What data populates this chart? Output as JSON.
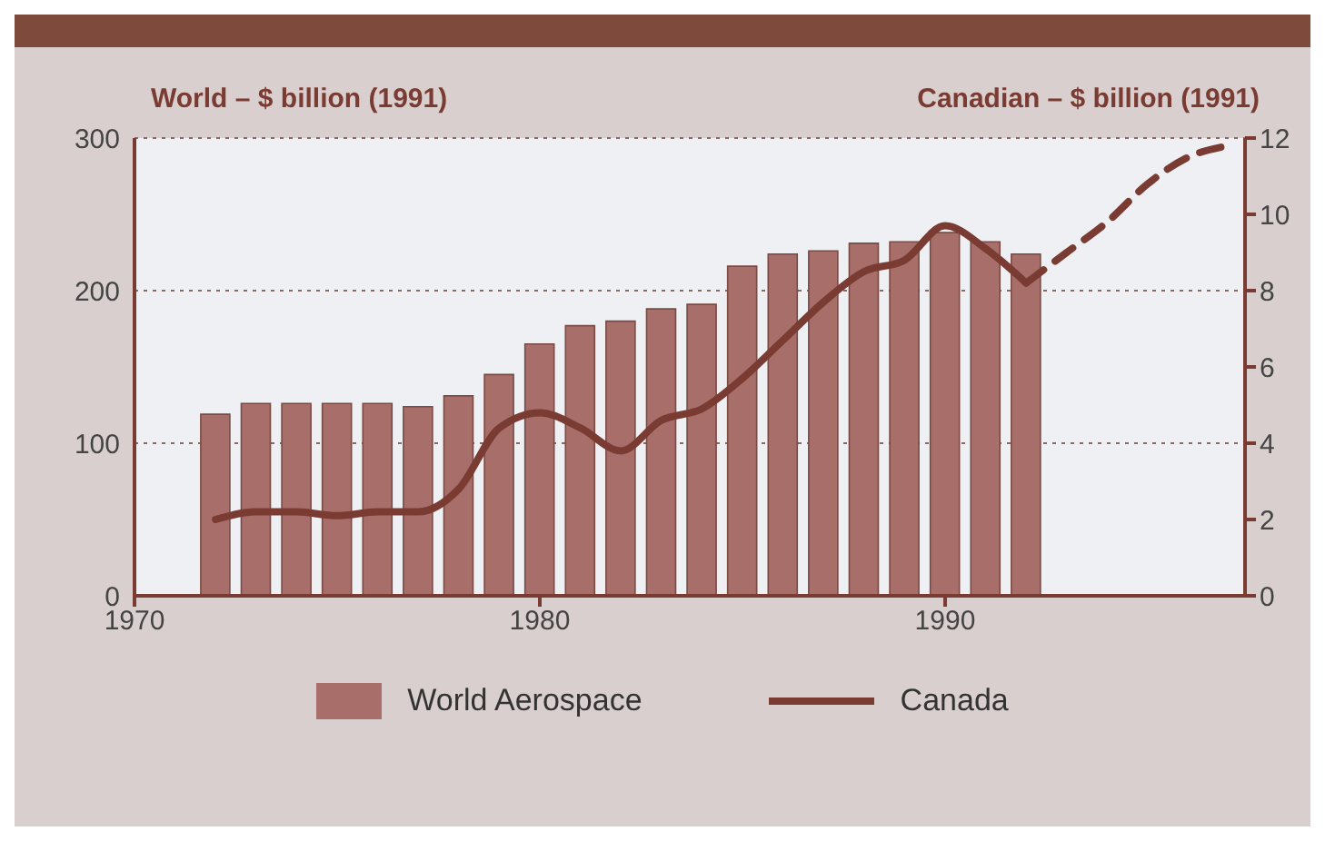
{
  "chart_data": {
    "type": "bar",
    "ylabel": "World – $ billion (1991)",
    "y2label": "Canadian – $ billion (1991)",
    "xlim": [
      1970,
      1997.4
    ],
    "xticks": [
      1970,
      1980,
      1990
    ],
    "ylim": [
      0,
      300
    ],
    "yticks": [
      0,
      100,
      200,
      300
    ],
    "y2lim": [
      0,
      12
    ],
    "y2ticks": [
      0,
      2,
      4,
      6,
      8,
      10,
      12
    ],
    "grid": "y",
    "legend": "bottom",
    "series": [
      {
        "name": "World Aerospace",
        "color": "#a86e6a",
        "x": [
          1972,
          1973,
          1974,
          1975,
          1976,
          1977,
          1978,
          1979,
          1980,
          1981,
          1982,
          1983,
          1984,
          1985,
          1986,
          1987,
          1988,
          1989,
          1990,
          1991,
          1992
        ],
        "values": [
          119,
          126,
          126,
          126,
          126,
          124,
          131,
          145,
          165,
          177,
          180,
          188,
          191,
          216,
          224,
          226,
          231,
          232,
          238,
          232,
          224
        ]
      },
      {
        "name": "Canada",
        "type": "line",
        "axis": "y2",
        "color": "#7a3b32",
        "line_style": "solid",
        "x": [
          1972,
          1973,
          1974,
          1975,
          1976,
          1977,
          1978,
          1979,
          1980,
          1981,
          1982,
          1983,
          1984,
          1985,
          1986,
          1987,
          1988,
          1989,
          1990,
          1991,
          1992
        ],
        "values": [
          2.0,
          2.2,
          2.2,
          2.1,
          2.2,
          2.2,
          2.8,
          4.4,
          4.8,
          4.4,
          3.8,
          4.6,
          4.9,
          5.7,
          6.7,
          7.7,
          8.5,
          8.8,
          9.7,
          9.1,
          8.2
        ]
      },
      {
        "type": "line",
        "axis": "y2",
        "color": "#7a3b32",
        "line_style": "dashed",
        "x": [
          1992,
          1993,
          1994,
          1995,
          1996,
          1997
        ],
        "values": [
          8.2,
          9.0,
          9.8,
          10.8,
          11.5,
          11.8
        ]
      }
    ]
  }
}
